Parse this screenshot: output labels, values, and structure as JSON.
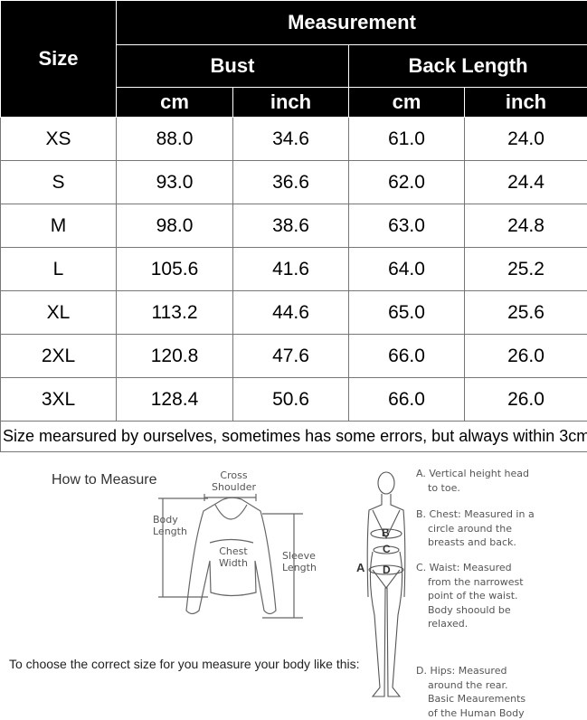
{
  "table": {
    "size_header": "Size",
    "measurement_header": "Measurement",
    "groups": [
      "Bust",
      "Back Length"
    ],
    "units": [
      "cm",
      "inch",
      "cm",
      "inch"
    ],
    "rows": [
      [
        "XS",
        "88.0",
        "34.6",
        "61.0",
        "24.0"
      ],
      [
        "S",
        "93.0",
        "36.6",
        "62.0",
        "24.4"
      ],
      [
        "M",
        "98.0",
        "38.6",
        "63.0",
        "24.8"
      ],
      [
        "L",
        "105.6",
        "41.6",
        "64.0",
        "25.2"
      ],
      [
        "XL",
        "113.2",
        "44.6",
        "65.0",
        "25.6"
      ],
      [
        "2XL",
        "120.8",
        "47.6",
        "66.0",
        "26.0"
      ],
      [
        "3XL",
        "128.4",
        "50.6",
        "66.0",
        "26.0"
      ]
    ],
    "note": "Size mearsured by ourselves, sometimes has some errors, but always within 3cm."
  },
  "guide": {
    "title": "How to Measure",
    "cross_shoulder": [
      "Cross",
      "Shoulder"
    ],
    "body_length": [
      "Body",
      "Length"
    ],
    "chest_width": [
      "Chest",
      "Width"
    ],
    "sleeve_length": [
      "Sleeve",
      "Length"
    ],
    "instruction": "To choose the correct size for you measure your body like this:",
    "figure_labels": [
      "A",
      "B",
      "C",
      "D"
    ],
    "items": [
      [
        "A. Vertical height head",
        "to toe."
      ],
      [
        "B. Chest: Measured in a",
        "circle around the",
        "breasts and back."
      ],
      [
        "C. Waist: Measured",
        "from the narrowest",
        "point of the waist.",
        "Body shoould be",
        "relaxed."
      ],
      [
        "D. Hips: Measured",
        "around the rear.",
        "Basic Meaurements",
        "of the Human Body"
      ]
    ]
  }
}
